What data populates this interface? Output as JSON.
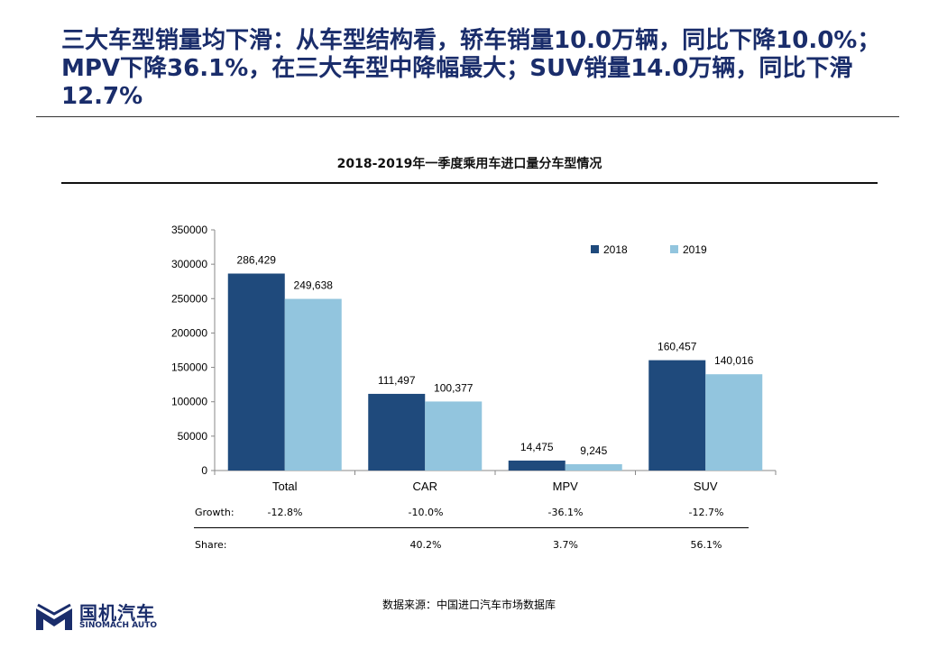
{
  "headline": "三大车型销量均下滑：从车型结构看，轿车销量10.0万辆，同比下降10.0%；MPV下降36.1%，在三大车型中降幅最大；SUV销量14.0万辆，同比下滑12.7%",
  "chart_data": {
    "type": "bar",
    "title": "2018-2019年一季度乘用车进口量分车型情况",
    "categories": [
      "Total",
      "CAR",
      "MPV",
      "SUV"
    ],
    "series": [
      {
        "name": "2018",
        "values": [
          286429,
          111497,
          14475,
          160457
        ],
        "labels": [
          "286,429",
          "111,497",
          "14,475",
          "160,457"
        ],
        "color": "#1f4a7c"
      },
      {
        "name": "2019",
        "values": [
          249638,
          100377,
          9245,
          140016
        ],
        "labels": [
          "249,638",
          "100,377",
          "9,245",
          "140,016"
        ],
        "color": "#92c5de"
      }
    ],
    "ylim": [
      0,
      350000
    ],
    "yticks": [
      "0",
      "50000",
      "100000",
      "150000",
      "200000",
      "250000",
      "300000",
      "350000"
    ],
    "legend": "top-right",
    "grid": false
  },
  "table": {
    "growth_label": "Growth:",
    "growth": [
      "-12.8%",
      "-10.0%",
      "-36.1%",
      "-12.7%"
    ],
    "share_label": "Share:",
    "share": [
      "",
      "40.2%",
      "3.7%",
      "56.1%"
    ]
  },
  "source": "数据来源：中国进口汽车市场数据库",
  "logo": {
    "cn": "国机汽车",
    "en": "SINOMACH AUTO",
    "color": "#1a2d6b"
  }
}
